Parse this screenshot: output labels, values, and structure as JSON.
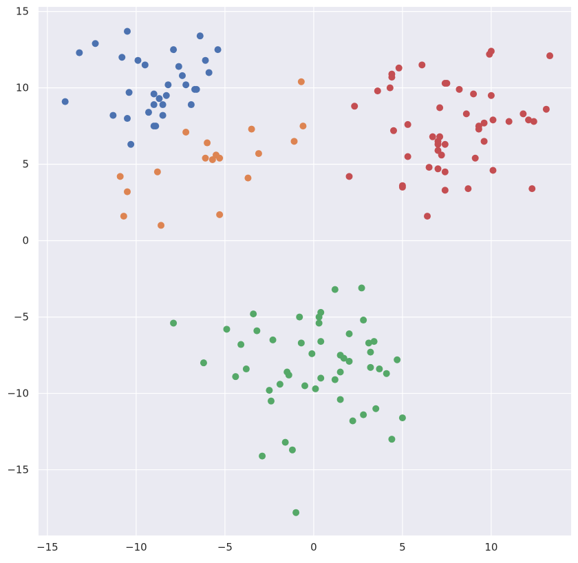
{
  "chart_data": {
    "type": "scatter",
    "title": "",
    "xlabel": "",
    "ylabel": "",
    "xlim": [
      -15.5,
      14.5
    ],
    "ylim": [
      -19.3,
      15.3
    ],
    "xticks": [
      -15,
      -10,
      -5,
      0,
      5,
      10
    ],
    "yticks": [
      -15,
      -10,
      -5,
      0,
      5,
      10,
      15
    ],
    "grid": true,
    "background": "#EAEAF2",
    "grid_color": "#FFFFFF",
    "series": [
      {
        "color": "#4C72B0",
        "points": [
          [
            -14.0,
            9.1
          ],
          [
            -13.2,
            12.3
          ],
          [
            -12.3,
            12.9
          ],
          [
            -10.5,
            13.7
          ],
          [
            -10.8,
            12.0
          ],
          [
            -11.3,
            8.2
          ],
          [
            -10.5,
            8.0
          ],
          [
            -10.4,
            9.7
          ],
          [
            -10.3,
            6.3
          ],
          [
            -9.9,
            11.8
          ],
          [
            -9.5,
            11.5
          ],
          [
            -9.3,
            8.4
          ],
          [
            -9.0,
            9.6
          ],
          [
            -9.0,
            8.9
          ],
          [
            -8.9,
            7.5
          ],
          [
            -9.0,
            7.5
          ],
          [
            -8.7,
            9.3
          ],
          [
            -8.5,
            8.9
          ],
          [
            -8.5,
            8.2
          ],
          [
            -8.3,
            9.5
          ],
          [
            -8.2,
            10.2
          ],
          [
            -7.9,
            12.5
          ],
          [
            -7.6,
            11.4
          ],
          [
            -7.4,
            10.8
          ],
          [
            -7.2,
            10.2
          ],
          [
            -6.9,
            8.9
          ],
          [
            -6.7,
            9.9
          ],
          [
            -6.6,
            9.9
          ],
          [
            -6.4,
            13.4
          ],
          [
            -6.1,
            11.8
          ],
          [
            -5.9,
            11.0
          ],
          [
            -5.4,
            12.5
          ]
        ]
      },
      {
        "color": "#DD8452",
        "points": [
          [
            -10.9,
            4.2
          ],
          [
            -10.7,
            1.6
          ],
          [
            -10.5,
            3.2
          ],
          [
            -8.8,
            4.5
          ],
          [
            -8.6,
            1.0
          ],
          [
            -7.2,
            7.1
          ],
          [
            -6.1,
            5.4
          ],
          [
            -6.0,
            6.4
          ],
          [
            -5.7,
            5.3
          ],
          [
            -5.5,
            5.6
          ],
          [
            -5.3,
            5.4
          ],
          [
            -5.3,
            1.7
          ],
          [
            -3.7,
            4.1
          ],
          [
            -3.5,
            7.3
          ],
          [
            -3.1,
            5.7
          ],
          [
            -1.1,
            6.5
          ],
          [
            -0.7,
            10.4
          ],
          [
            -0.6,
            7.5
          ]
        ]
      },
      {
        "color": "#C44E52",
        "points": [
          [
            2.0,
            4.2
          ],
          [
            2.3,
            8.8
          ],
          [
            3.6,
            9.8
          ],
          [
            4.3,
            10.0
          ],
          [
            4.4,
            10.7
          ],
          [
            4.4,
            10.9
          ],
          [
            4.5,
            7.2
          ],
          [
            4.8,
            11.3
          ],
          [
            5.0,
            3.5
          ],
          [
            5.0,
            3.6
          ],
          [
            5.3,
            7.6
          ],
          [
            5.3,
            5.5
          ],
          [
            6.1,
            11.5
          ],
          [
            6.4,
            1.6
          ],
          [
            6.5,
            4.8
          ],
          [
            6.7,
            6.8
          ],
          [
            7.0,
            6.3
          ],
          [
            7.0,
            6.5
          ],
          [
            7.1,
            6.8
          ],
          [
            7.0,
            5.9
          ],
          [
            7.0,
            4.7
          ],
          [
            7.1,
            8.7
          ],
          [
            7.2,
            5.6
          ],
          [
            7.4,
            6.3
          ],
          [
            7.4,
            4.5
          ],
          [
            7.4,
            3.3
          ],
          [
            7.4,
            10.3
          ],
          [
            7.5,
            10.3
          ],
          [
            8.2,
            9.9
          ],
          [
            8.6,
            8.3
          ],
          [
            8.7,
            3.4
          ],
          [
            9.0,
            9.6
          ],
          [
            9.1,
            5.4
          ],
          [
            9.3,
            7.5
          ],
          [
            9.3,
            7.3
          ],
          [
            9.6,
            7.7
          ],
          [
            9.6,
            6.5
          ],
          [
            9.9,
            12.2
          ],
          [
            10.0,
            12.4
          ],
          [
            10.0,
            9.5
          ],
          [
            10.1,
            7.9
          ],
          [
            10.1,
            4.6
          ],
          [
            11.0,
            7.8
          ],
          [
            11.8,
            8.3
          ],
          [
            12.1,
            7.9
          ],
          [
            12.3,
            3.4
          ],
          [
            12.4,
            7.8
          ],
          [
            13.1,
            8.6
          ],
          [
            13.3,
            12.1
          ]
        ]
      },
      {
        "color": "#55A868",
        "points": [
          [
            -7.9,
            -5.4
          ],
          [
            -6.2,
            -8.0
          ],
          [
            -4.9,
            -5.8
          ],
          [
            -4.4,
            -8.9
          ],
          [
            -4.1,
            -6.8
          ],
          [
            -3.8,
            -8.4
          ],
          [
            -3.4,
            -4.8
          ],
          [
            -3.2,
            -5.9
          ],
          [
            -2.9,
            -14.1
          ],
          [
            -2.5,
            -9.8
          ],
          [
            -2.4,
            -10.5
          ],
          [
            -2.3,
            -6.5
          ],
          [
            -1.9,
            -9.4
          ],
          [
            -1.6,
            -13.2
          ],
          [
            -1.5,
            -8.6
          ],
          [
            -1.4,
            -8.8
          ],
          [
            -1.2,
            -13.7
          ],
          [
            -1.0,
            -17.8
          ],
          [
            -0.8,
            -5.0
          ],
          [
            -0.7,
            -6.7
          ],
          [
            -0.5,
            -9.5
          ],
          [
            -0.1,
            -7.4
          ],
          [
            0.1,
            -9.7
          ],
          [
            0.3,
            -5.0
          ],
          [
            0.3,
            -5.4
          ],
          [
            0.4,
            -6.6
          ],
          [
            0.4,
            -9.0
          ],
          [
            0.4,
            -4.7
          ],
          [
            1.2,
            -3.2
          ],
          [
            1.2,
            -9.1
          ],
          [
            1.5,
            -7.5
          ],
          [
            1.5,
            -8.6
          ],
          [
            1.5,
            -10.4
          ],
          [
            1.7,
            -7.7
          ],
          [
            2.0,
            -7.9
          ],
          [
            2.0,
            -6.1
          ],
          [
            2.2,
            -11.8
          ],
          [
            2.7,
            -3.1
          ],
          [
            2.8,
            -11.4
          ],
          [
            2.8,
            -5.2
          ],
          [
            3.1,
            -6.7
          ],
          [
            3.2,
            -7.3
          ],
          [
            3.2,
            -8.3
          ],
          [
            3.4,
            -6.6
          ],
          [
            3.5,
            -11.0
          ],
          [
            3.7,
            -8.4
          ],
          [
            4.1,
            -8.7
          ],
          [
            4.4,
            -13.0
          ],
          [
            4.7,
            -7.8
          ],
          [
            5.0,
            -11.6
          ]
        ]
      }
    ]
  }
}
